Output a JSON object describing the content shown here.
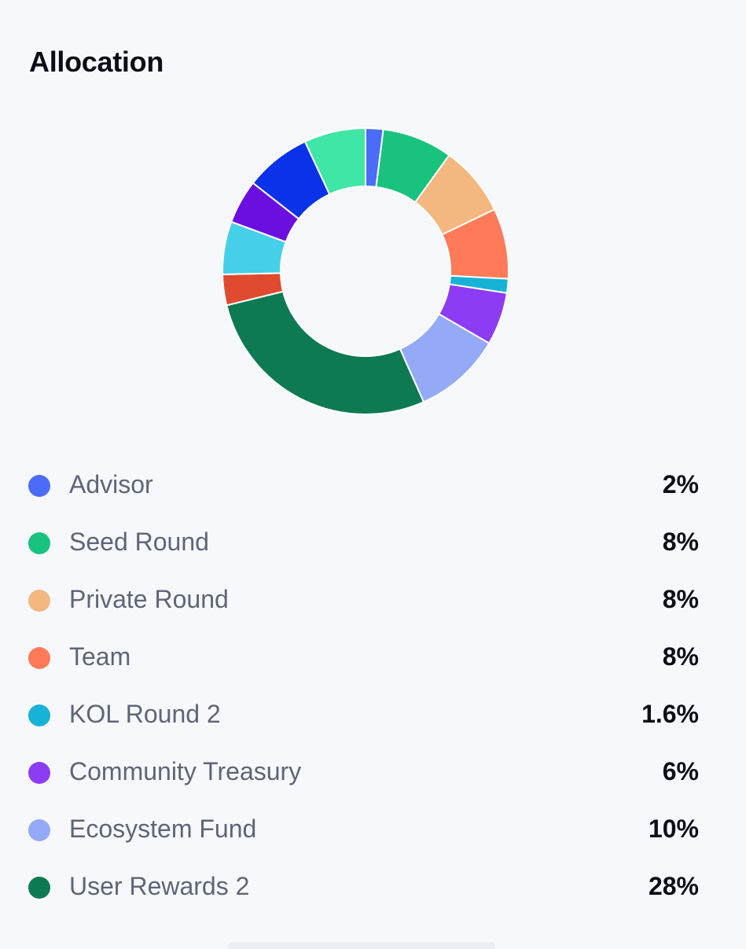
{
  "header": {
    "title": "Allocation"
  },
  "chart_data": {
    "type": "pie",
    "variant": "donut",
    "title": "Allocation",
    "legend_position": "bottom",
    "series": [
      {
        "name": "Advisor",
        "value": 2,
        "label": "2%",
        "color": "#4a6cf7"
      },
      {
        "name": "Seed Round",
        "value": 8,
        "label": "8%",
        "color": "#19c37d"
      },
      {
        "name": "Private Round",
        "value": 8,
        "label": "8%",
        "color": "#f4b77f"
      },
      {
        "name": "Team",
        "value": 8,
        "label": "8%",
        "color": "#ff7a59"
      },
      {
        "name": "KOL Round 2",
        "value": 1.6,
        "label": "1.6%",
        "color": "#16b3d6"
      },
      {
        "name": "Community Treasury",
        "value": 6,
        "label": "6%",
        "color": "#8c3cf4"
      },
      {
        "name": "Ecosystem Fund",
        "value": 10,
        "label": "10%",
        "color": "#94aaf7"
      },
      {
        "name": "User Rewards 2",
        "value": 28,
        "label": "28%",
        "color": "#0e7a52"
      }
    ],
    "unlisted_segments": [
      {
        "value": 3.5,
        "color": "#e04b2f"
      },
      {
        "value": 6,
        "color": "#46cfe8"
      },
      {
        "value": 5,
        "color": "#6a0fe0"
      },
      {
        "value": 7.5,
        "color": "#0a32e8"
      },
      {
        "value": 7,
        "color": "#3fe6a6"
      }
    ]
  }
}
